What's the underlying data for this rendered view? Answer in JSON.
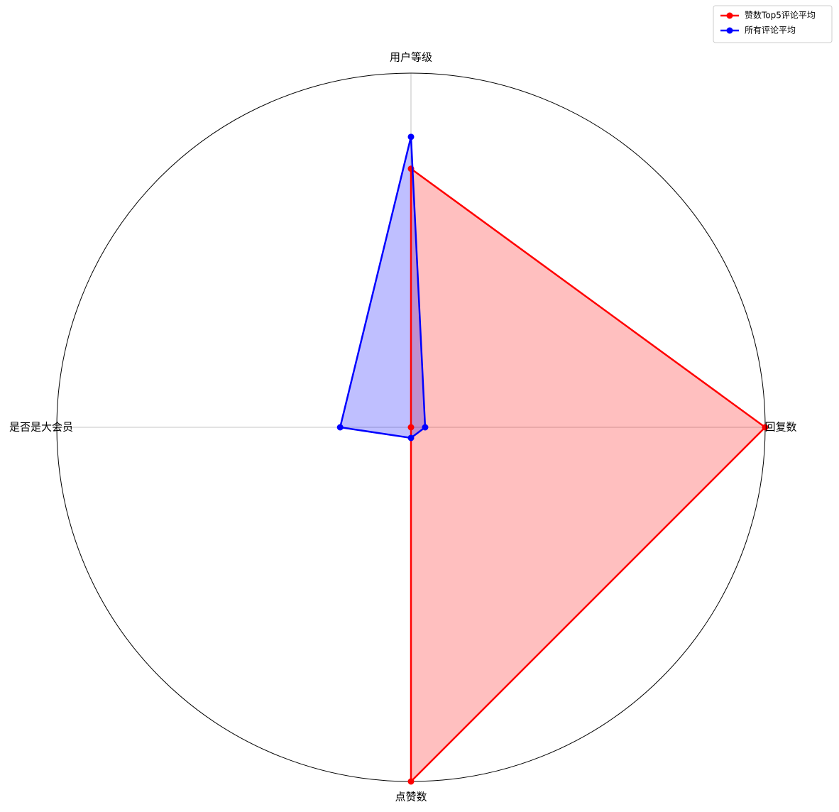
{
  "chart_data": {
    "type": "radar",
    "axes": [
      "回复数",
      "用户等级",
      "是否是大会员",
      "点赞数"
    ],
    "range": [
      0,
      1
    ],
    "grid": true,
    "legend_position": "top-right",
    "series": [
      {
        "name": "赞数Top5评论平均",
        "color": "#ff0000",
        "fill": "#ff0000",
        "values": [
          1.0,
          0.73,
          0.0,
          1.0
        ]
      },
      {
        "name": "所有评论平均",
        "color": "#0000ff",
        "fill": "#0000ff",
        "values": [
          0.04,
          0.82,
          0.2,
          0.03
        ]
      }
    ]
  }
}
